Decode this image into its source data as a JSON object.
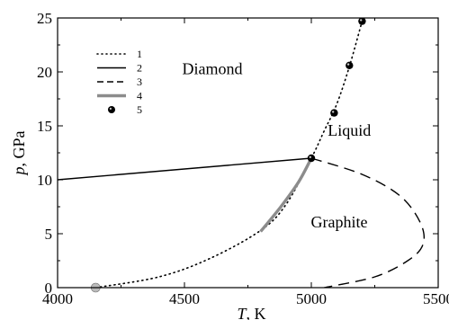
{
  "chart_data": {
    "type": "line",
    "title": "",
    "xlabel": {
      "var": "T",
      "unit": ", K"
    },
    "ylabel": {
      "var": "p",
      "unit": ", GPa"
    },
    "xlim": [
      4000,
      5500
    ],
    "ylim": [
      0,
      25
    ],
    "x_ticks": [
      4000,
      4500,
      5000,
      5500
    ],
    "y_ticks": [
      0,
      5,
      10,
      15,
      20,
      25
    ],
    "regions": [
      "Diamond",
      "Liquid",
      "Graphite"
    ],
    "legend": [
      "1",
      "2",
      "3",
      "4",
      "5"
    ],
    "series": [
      {
        "name": "1",
        "style": "dotted",
        "color": "#000000",
        "points": [
          [
            4150,
            0
          ],
          [
            4400,
            1
          ],
          [
            4600,
            2.7
          ],
          [
            4800,
            5.3
          ],
          [
            4900,
            7.7
          ],
          [
            5000,
            12
          ],
          [
            5050,
            14.5
          ],
          [
            5100,
            17
          ],
          [
            5150,
            20.5
          ],
          [
            5200,
            24.7
          ]
        ]
      },
      {
        "name": "2",
        "style": "solid",
        "color": "#000000",
        "points": [
          [
            4000,
            10
          ],
          [
            5000,
            12
          ]
        ]
      },
      {
        "name": "3",
        "style": "dashed",
        "color": "#000000",
        "points": [
          [
            5000,
            12
          ],
          [
            5200,
            10.5
          ],
          [
            5350,
            8.5
          ],
          [
            5430,
            6
          ],
          [
            5440,
            4
          ],
          [
            5380,
            2.5
          ],
          [
            5250,
            1
          ],
          [
            5050,
            0
          ]
        ]
      },
      {
        "name": "4",
        "style": "solid",
        "color": "#8c8c8c",
        "points": [
          [
            4800,
            5.2
          ],
          [
            4880,
            7.5
          ],
          [
            4950,
            9.8
          ],
          [
            5000,
            12
          ]
        ]
      },
      {
        "name": "5",
        "style": "markers",
        "color": "#000000",
        "points": [
          [
            5000,
            12
          ],
          [
            5090,
            16.2
          ],
          [
            5150,
            20.6
          ],
          [
            5200,
            24.7
          ]
        ]
      }
    ],
    "extra_points": [
      {
        "x": 4150,
        "y": 0,
        "color": "#bbbbbb"
      }
    ]
  }
}
